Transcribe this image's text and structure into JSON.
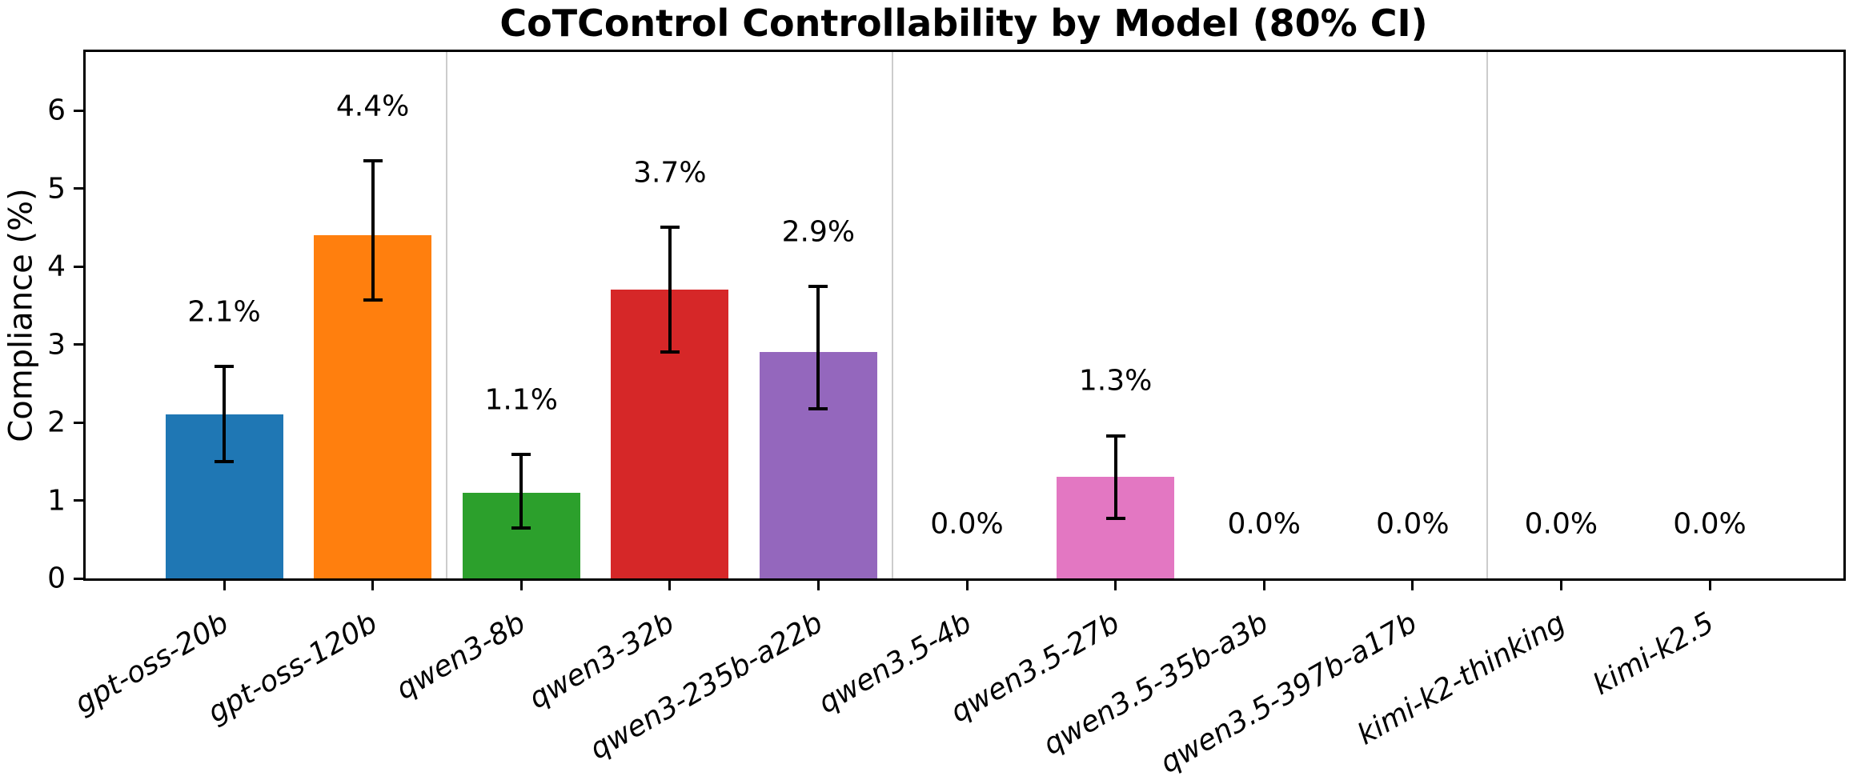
{
  "chart_data": {
    "type": "bar",
    "title": "CoTControl Controllability by Model (80% CI)",
    "ylabel": "Compliance (%)",
    "xlabel": "",
    "ci_level": "80%",
    "grid": false,
    "legend": null,
    "categories": [
      "gpt-oss-20b",
      "gpt-oss-120b",
      "qwen3-8b",
      "qwen3-32b",
      "qwen3-235b-a22b",
      "qwen3.5-4b",
      "qwen3.5-27b",
      "qwen3.5-35b-a3b",
      "qwen3.5-397b-a17b",
      "kimi-k2-thinking",
      "kimi-k2.5"
    ],
    "values": [
      2.1,
      4.4,
      1.1,
      3.7,
      2.9,
      0.0,
      1.3,
      0.0,
      0.0,
      0.0,
      0.0
    ],
    "bar_labels": [
      "2.1%",
      "4.4%",
      "1.1%",
      "3.7%",
      "2.9%",
      "0.0%",
      "1.3%",
      "0.0%",
      "0.0%",
      "0.0%",
      "0.0%"
    ],
    "ci_low": [
      1.5,
      3.57,
      0.65,
      2.9,
      2.17,
      null,
      0.77,
      null,
      null,
      null,
      null
    ],
    "ci_high": [
      2.72,
      5.35,
      1.59,
      4.5,
      3.74,
      null,
      1.83,
      null,
      null,
      null,
      null
    ],
    "colors": [
      "#1f77b4",
      "#ff7f0e",
      "#2ca02c",
      "#d62728",
      "#9467bd",
      null,
      "#e377c2",
      null,
      null,
      null,
      null
    ],
    "error_bar_color": "#000000",
    "yticks": [
      0,
      1,
      2,
      3,
      4,
      5,
      6
    ],
    "ylim": [
      0,
      6.75
    ],
    "group_separators_at": [
      1.5,
      4.5,
      8.5
    ],
    "separator_color": "#cccccc",
    "x_tick_label_rotation_deg": 30,
    "x_tick_label_style": "italic"
  }
}
